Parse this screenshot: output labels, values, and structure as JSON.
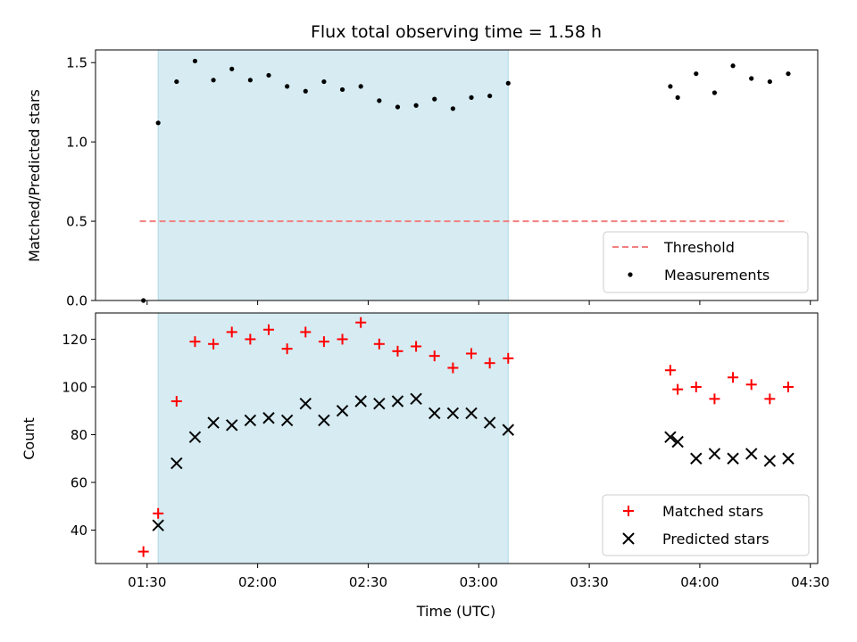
{
  "chart_data": {
    "type": "scatter",
    "title": "Flux total observing time = 1.58 h",
    "xlabel": "Time (UTC)",
    "x_ticks": [
      "01:30",
      "02:00",
      "02:30",
      "03:00",
      "03:30",
      "04:00",
      "04:30"
    ],
    "x_tick_minutes": [
      90,
      120,
      150,
      180,
      210,
      240,
      270
    ],
    "xlim": [
      "01:16",
      "04:32"
    ],
    "observing_window": {
      "start": "01:33",
      "end": "03:08",
      "color": "#add8e6"
    },
    "top_panel": {
      "ylabel": "Matched/Predicted stars",
      "ylim": [
        0,
        1.58
      ],
      "y_ticks": [
        "0.0",
        "0.5",
        "1.0",
        "1.5"
      ],
      "y_tick_values": [
        0,
        0.5,
        1.0,
        1.5
      ],
      "threshold": {
        "name": "Threshold",
        "value": 0.5,
        "x_start": "01:28",
        "x_end": "04:24",
        "color": "#f08080"
      },
      "measurements": {
        "name": "Measurements",
        "color": "#000000",
        "points": [
          [
            "01:29",
            0.0
          ],
          [
            "01:33",
            1.12
          ],
          [
            "01:38",
            1.38
          ],
          [
            "01:43",
            1.51
          ],
          [
            "01:48",
            1.39
          ],
          [
            "01:53",
            1.46
          ],
          [
            "01:58",
            1.39
          ],
          [
            "02:03",
            1.42
          ],
          [
            "02:08",
            1.35
          ],
          [
            "02:13",
            1.32
          ],
          [
            "02:18",
            1.38
          ],
          [
            "02:23",
            1.33
          ],
          [
            "02:28",
            1.35
          ],
          [
            "02:33",
            1.26
          ],
          [
            "02:38",
            1.22
          ],
          [
            "02:43",
            1.23
          ],
          [
            "02:48",
            1.27
          ],
          [
            "02:53",
            1.21
          ],
          [
            "02:58",
            1.28
          ],
          [
            "03:03",
            1.29
          ],
          [
            "03:08",
            1.37
          ],
          [
            "03:52",
            1.35
          ],
          [
            "03:54",
            1.28
          ],
          [
            "03:59",
            1.43
          ],
          [
            "04:04",
            1.31
          ],
          [
            "04:09",
            1.48
          ],
          [
            "04:14",
            1.4
          ],
          [
            "04:19",
            1.38
          ],
          [
            "04:24",
            1.43
          ]
        ]
      },
      "legend": [
        "Threshold",
        "Measurements"
      ],
      "legend_placement": "lower-right"
    },
    "bottom_panel": {
      "ylabel": "Count",
      "ylim": [
        26,
        131
      ],
      "y_ticks": [
        "40",
        "60",
        "80",
        "100",
        "120"
      ],
      "y_tick_values": [
        40,
        60,
        80,
        100,
        120
      ],
      "series": [
        {
          "name": "Matched stars",
          "marker": "plus",
          "color": "#ff0000",
          "points": [
            [
              "01:29",
              31
            ],
            [
              "01:33",
              47
            ],
            [
              "01:38",
              94
            ],
            [
              "01:43",
              119
            ],
            [
              "01:48",
              118
            ],
            [
              "01:53",
              123
            ],
            [
              "01:58",
              120
            ],
            [
              "02:03",
              124
            ],
            [
              "02:08",
              116
            ],
            [
              "02:13",
              123
            ],
            [
              "02:18",
              119
            ],
            [
              "02:23",
              120
            ],
            [
              "02:28",
              127
            ],
            [
              "02:33",
              118
            ],
            [
              "02:38",
              115
            ],
            [
              "02:43",
              117
            ],
            [
              "02:48",
              113
            ],
            [
              "02:53",
              108
            ],
            [
              "02:58",
              114
            ],
            [
              "03:03",
              110
            ],
            [
              "03:08",
              112
            ],
            [
              "03:52",
              107
            ],
            [
              "03:54",
              99
            ],
            [
              "03:59",
              100
            ],
            [
              "04:04",
              95
            ],
            [
              "04:09",
              104
            ],
            [
              "04:14",
              101
            ],
            [
              "04:19",
              95
            ],
            [
              "04:24",
              100
            ]
          ]
        },
        {
          "name": "Predicted stars",
          "marker": "x",
          "color": "#000000",
          "points": [
            [
              "01:33",
              42
            ],
            [
              "01:38",
              68
            ],
            [
              "01:43",
              79
            ],
            [
              "01:48",
              85
            ],
            [
              "01:53",
              84
            ],
            [
              "01:58",
              86
            ],
            [
              "02:03",
              87
            ],
            [
              "02:08",
              86
            ],
            [
              "02:13",
              93
            ],
            [
              "02:18",
              86
            ],
            [
              "02:23",
              90
            ],
            [
              "02:28",
              94
            ],
            [
              "02:33",
              93
            ],
            [
              "02:38",
              94
            ],
            [
              "02:43",
              95
            ],
            [
              "02:48",
              89
            ],
            [
              "02:53",
              89
            ],
            [
              "02:58",
              89
            ],
            [
              "03:03",
              85
            ],
            [
              "03:08",
              82
            ],
            [
              "03:52",
              79
            ],
            [
              "03:54",
              77
            ],
            [
              "03:59",
              70
            ],
            [
              "04:04",
              72
            ],
            [
              "04:09",
              70
            ],
            [
              "04:14",
              72
            ],
            [
              "04:19",
              69
            ],
            [
              "04:24",
              70
            ]
          ]
        }
      ],
      "legend": [
        "Matched stars",
        "Predicted stars"
      ],
      "legend_placement": "lower-right"
    }
  }
}
